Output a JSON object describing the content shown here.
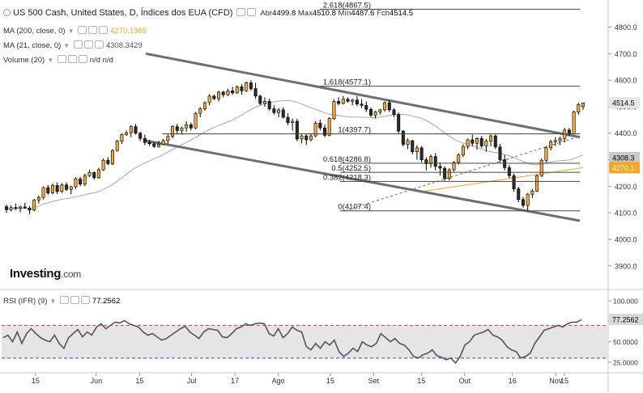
{
  "header": {
    "symbol": "US 500 Cash, United States, D, Índices dos EUA (CFD)",
    "open_label": "Abr",
    "open": "4499.8",
    "high_label": "Max",
    "high": "4510.8",
    "low_label": "Mín",
    "low": "4487.6",
    "close_label": "Fch",
    "close": "4514.5"
  },
  "indicators": {
    "ma200_label": "MA (200, close, 0)",
    "ma200_value": "4270.1365",
    "ma21_label": "MA (21, close, 0)",
    "ma21_value": "4308.3429",
    "volume_label": "Volume (20)",
    "volume_value1": "n/d",
    "volume_value2": "n/d",
    "rsi_label": "RSI (IFR) (9)",
    "rsi_value": "77.2562"
  },
  "logo": {
    "main": "Investing",
    "suffix": ".com"
  },
  "chart_data": {
    "type": "candlestick",
    "ylim": [
      3820,
      4890
    ],
    "y_ticks": [
      "4800.0",
      "4700.0",
      "4600.0",
      "4500.0",
      "4400.0",
      "4300.0",
      "4200.0",
      "4100.0",
      "4000.0",
      "3900.0"
    ],
    "x_ticks": [
      "15",
      "Jun",
      "15",
      "Jul",
      "17",
      "Ago",
      "15",
      "Set",
      "15",
      "Out",
      "16",
      "Nov",
      "15"
    ],
    "price_badges": [
      {
        "text": "4514.5",
        "value": 4514.5,
        "color": "#e6e6e6",
        "text_color": "#000"
      },
      {
        "text": "4308.3",
        "value": 4308.3,
        "color": "#c9c9c9",
        "text_color": "#000"
      },
      {
        "text": "4270.1",
        "value": 4270.1,
        "color": "#f5a623",
        "text_color": "#fff"
      }
    ],
    "fib_levels": [
      {
        "ratio": "2.618",
        "label": "2.618(4867.5)",
        "value": 4867.5
      },
      {
        "ratio": "1.618",
        "label": "1.618(4577.1)",
        "value": 4577.1
      },
      {
        "ratio": "1",
        "label": "1(4397.7)",
        "value": 4397.7
      },
      {
        "ratio": "0.618",
        "label": "0.618(4286.8)",
        "value": 4286.8
      },
      {
        "ratio": "0.5",
        "label": "0.5(4252.5)",
        "value": 4252.5
      },
      {
        "ratio": "0.382",
        "label": "0.382(4218.3)",
        "value": 4218.3
      },
      {
        "ratio": "0",
        "label": "0(4107.4)",
        "value": 4107.4
      }
    ],
    "candles": [
      [
        4123,
        4130,
        4100,
        4112
      ],
      [
        4112,
        4128,
        4105,
        4120
      ],
      [
        4120,
        4135,
        4110,
        4116
      ],
      [
        4116,
        4127,
        4102,
        4122
      ],
      [
        4122,
        4138,
        4115,
        4118
      ],
      [
        4118,
        4125,
        4095,
        4110
      ],
      [
        4110,
        4152,
        4105,
        4148
      ],
      [
        4148,
        4165,
        4135,
        4158
      ],
      [
        4158,
        4200,
        4150,
        4195
      ],
      [
        4195,
        4205,
        4168,
        4175
      ],
      [
        4175,
        4210,
        4170,
        4203
      ],
      [
        4203,
        4215,
        4170,
        4180
      ],
      [
        4180,
        4212,
        4175,
        4205
      ],
      [
        4205,
        4215,
        4182,
        4188
      ],
      [
        4188,
        4202,
        4170,
        4198
      ],
      [
        4198,
        4235,
        4190,
        4228
      ],
      [
        4228,
        4235,
        4200,
        4208
      ],
      [
        4208,
        4248,
        4200,
        4240
      ],
      [
        4240,
        4262,
        4235,
        4252
      ],
      [
        4252,
        4255,
        4225,
        4232
      ],
      [
        4232,
        4270,
        4228,
        4262
      ],
      [
        4262,
        4305,
        4258,
        4298
      ],
      [
        4298,
        4310,
        4280,
        4285
      ],
      [
        4285,
        4340,
        4280,
        4335
      ],
      [
        4335,
        4375,
        4330,
        4370
      ],
      [
        4370,
        4400,
        4360,
        4395
      ],
      [
        4395,
        4410,
        4390,
        4402
      ],
      [
        4402,
        4430,
        4385,
        4425
      ],
      [
        4425,
        4435,
        4395,
        4400
      ],
      [
        4400,
        4405,
        4370,
        4380
      ],
      [
        4380,
        4395,
        4355,
        4365
      ],
      [
        4365,
        4375,
        4352,
        4360
      ],
      [
        4360,
        4365,
        4345,
        4350
      ],
      [
        4350,
        4372,
        4345,
        4358
      ],
      [
        4358,
        4378,
        4355,
        4372
      ],
      [
        4372,
        4395,
        4360,
        4388
      ],
      [
        4388,
        4430,
        4380,
        4425
      ],
      [
        4425,
        4435,
        4395,
        4410
      ],
      [
        4410,
        4425,
        4395,
        4420
      ],
      [
        4420,
        4445,
        4405,
        4432
      ],
      [
        4432,
        4440,
        4410,
        4420
      ],
      [
        4420,
        4480,
        4415,
        4475
      ],
      [
        4475,
        4498,
        4460,
        4492
      ],
      [
        4492,
        4520,
        4485,
        4515
      ],
      [
        4515,
        4548,
        4505,
        4540
      ],
      [
        4540,
        4545,
        4525,
        4530
      ],
      [
        4530,
        4560,
        4520,
        4555
      ],
      [
        4555,
        4560,
        4535,
        4545
      ],
      [
        4545,
        4568,
        4540,
        4560
      ],
      [
        4560,
        4575,
        4545,
        4552
      ],
      [
        4552,
        4580,
        4548,
        4575
      ],
      [
        4575,
        4585,
        4545,
        4560
      ],
      [
        4560,
        4595,
        4555,
        4590
      ],
      [
        4590,
        4600,
        4560,
        4568
      ],
      [
        4568,
        4590,
        4530,
        4540
      ],
      [
        4540,
        4545,
        4505,
        4512
      ],
      [
        4512,
        4535,
        4500,
        4520
      ],
      [
        4520,
        4530,
        4485,
        4492
      ],
      [
        4492,
        4505,
        4470,
        4478
      ],
      [
        4478,
        4495,
        4460,
        4488
      ],
      [
        4488,
        4498,
        4455,
        4460
      ],
      [
        4460,
        4475,
        4430,
        4440
      ],
      [
        4440,
        4455,
        4410,
        4445
      ],
      [
        4445,
        4455,
        4370,
        4378
      ],
      [
        4378,
        4395,
        4362,
        4390
      ],
      [
        4390,
        4395,
        4355,
        4375
      ],
      [
        4375,
        4400,
        4370,
        4390
      ],
      [
        4390,
        4445,
        4385,
        4438
      ],
      [
        4438,
        4452,
        4410,
        4420
      ],
      [
        4420,
        4432,
        4385,
        4392
      ],
      [
        4392,
        4460,
        4388,
        4455
      ],
      [
        4455,
        4528,
        4450,
        4520
      ],
      [
        4520,
        4535,
        4505,
        4512
      ],
      [
        4512,
        4540,
        4508,
        4528
      ],
      [
        4528,
        4535,
        4515,
        4520
      ],
      [
        4520,
        4530,
        4505,
        4525
      ],
      [
        4525,
        4540,
        4502,
        4510
      ],
      [
        4510,
        4528,
        4495,
        4505
      ],
      [
        4505,
        4520,
        4480,
        4490
      ],
      [
        4490,
        4498,
        4460,
        4468
      ],
      [
        4468,
        4485,
        4455,
        4480
      ],
      [
        4480,
        4492,
        4470,
        4488
      ],
      [
        4488,
        4520,
        4482,
        4515
      ],
      [
        4515,
        4525,
        4480,
        4488
      ],
      [
        4488,
        4495,
        4460,
        4470
      ],
      [
        4470,
        4478,
        4400,
        4408
      ],
      [
        4408,
        4412,
        4350,
        4358
      ],
      [
        4358,
        4380,
        4340,
        4372
      ],
      [
        4372,
        4375,
        4320,
        4330
      ],
      [
        4330,
        4355,
        4300,
        4345
      ],
      [
        4345,
        4352,
        4290,
        4300
      ],
      [
        4300,
        4310,
        4260,
        4285
      ],
      [
        4285,
        4320,
        4270,
        4312
      ],
      [
        4312,
        4325,
        4260,
        4275
      ],
      [
        4275,
        4290,
        4240,
        4268
      ],
      [
        4268,
        4275,
        4220,
        4230
      ],
      [
        4230,
        4268,
        4222,
        4262
      ],
      [
        4262,
        4295,
        4255,
        4290
      ],
      [
        4290,
        4325,
        4282,
        4318
      ],
      [
        4318,
        4358,
        4310,
        4350
      ],
      [
        4350,
        4380,
        4340,
        4375
      ],
      [
        4375,
        4395,
        4350,
        4362
      ],
      [
        4362,
        4385,
        4338,
        4380
      ],
      [
        4380,
        4390,
        4345,
        4352
      ],
      [
        4352,
        4378,
        4330,
        4370
      ],
      [
        4370,
        4395,
        4350,
        4390
      ],
      [
        4390,
        4395,
        4340,
        4348
      ],
      [
        4348,
        4360,
        4290,
        4300
      ],
      [
        4300,
        4318,
        4260,
        4270
      ],
      [
        4270,
        4280,
        4230,
        4240
      ],
      [
        4240,
        4248,
        4180,
        4190
      ],
      [
        4190,
        4198,
        4140,
        4150
      ],
      [
        4150,
        4160,
        4120,
        4128
      ],
      [
        4128,
        4175,
        4108,
        4170
      ],
      [
        4170,
        4190,
        4155,
        4182
      ],
      [
        4182,
        4245,
        4178,
        4240
      ],
      [
        4240,
        4305,
        4235,
        4298
      ],
      [
        4298,
        4352,
        4290,
        4345
      ],
      [
        4345,
        4375,
        4335,
        4368
      ],
      [
        4368,
        4385,
        4352,
        4372
      ],
      [
        4372,
        4388,
        4355,
        4380
      ],
      [
        4380,
        4420,
        4365,
        4412
      ],
      [
        4412,
        4420,
        4390,
        4398
      ],
      [
        4398,
        4485,
        4395,
        4480
      ],
      [
        4480,
        4515,
        4470,
        4508
      ],
      [
        4500,
        4511,
        4488,
        4514
      ]
    ],
    "ma200": [
      4000,
      4600
    ],
    "rsi": {
      "ylim": [
        15,
        110
      ],
      "overbought": 70,
      "oversold": 30,
      "ticks": [
        "100.000",
        "75.0000",
        "50.0000",
        "25.0000"
      ],
      "values": [
        55,
        58,
        50,
        62,
        48,
        60,
        66,
        60,
        55,
        52,
        50,
        58,
        48,
        42,
        55,
        60,
        65,
        56,
        62,
        58,
        68,
        72,
        66,
        70,
        74,
        73,
        76,
        72,
        70,
        68,
        62,
        58,
        60,
        56,
        52,
        54,
        58,
        62,
        66,
        69,
        62,
        58,
        54,
        62,
        66,
        65,
        64,
        56,
        55,
        60,
        66,
        68,
        72,
        70,
        72,
        73,
        72,
        60,
        57,
        66,
        55,
        60,
        68,
        64,
        62,
        44,
        40,
        48,
        42,
        50,
        46,
        52,
        38,
        32,
        36,
        42,
        38,
        50,
        46,
        44,
        48,
        60,
        55,
        50,
        54,
        48,
        46,
        40,
        32,
        30,
        34,
        36,
        40,
        33,
        31,
        28,
        30,
        24,
        32,
        46,
        50,
        58,
        60,
        62,
        65,
        58,
        56,
        52,
        44,
        40,
        38,
        30,
        32,
        36,
        48,
        56,
        64,
        66,
        68,
        70,
        68,
        72,
        74,
        74,
        77
      ]
    }
  }
}
